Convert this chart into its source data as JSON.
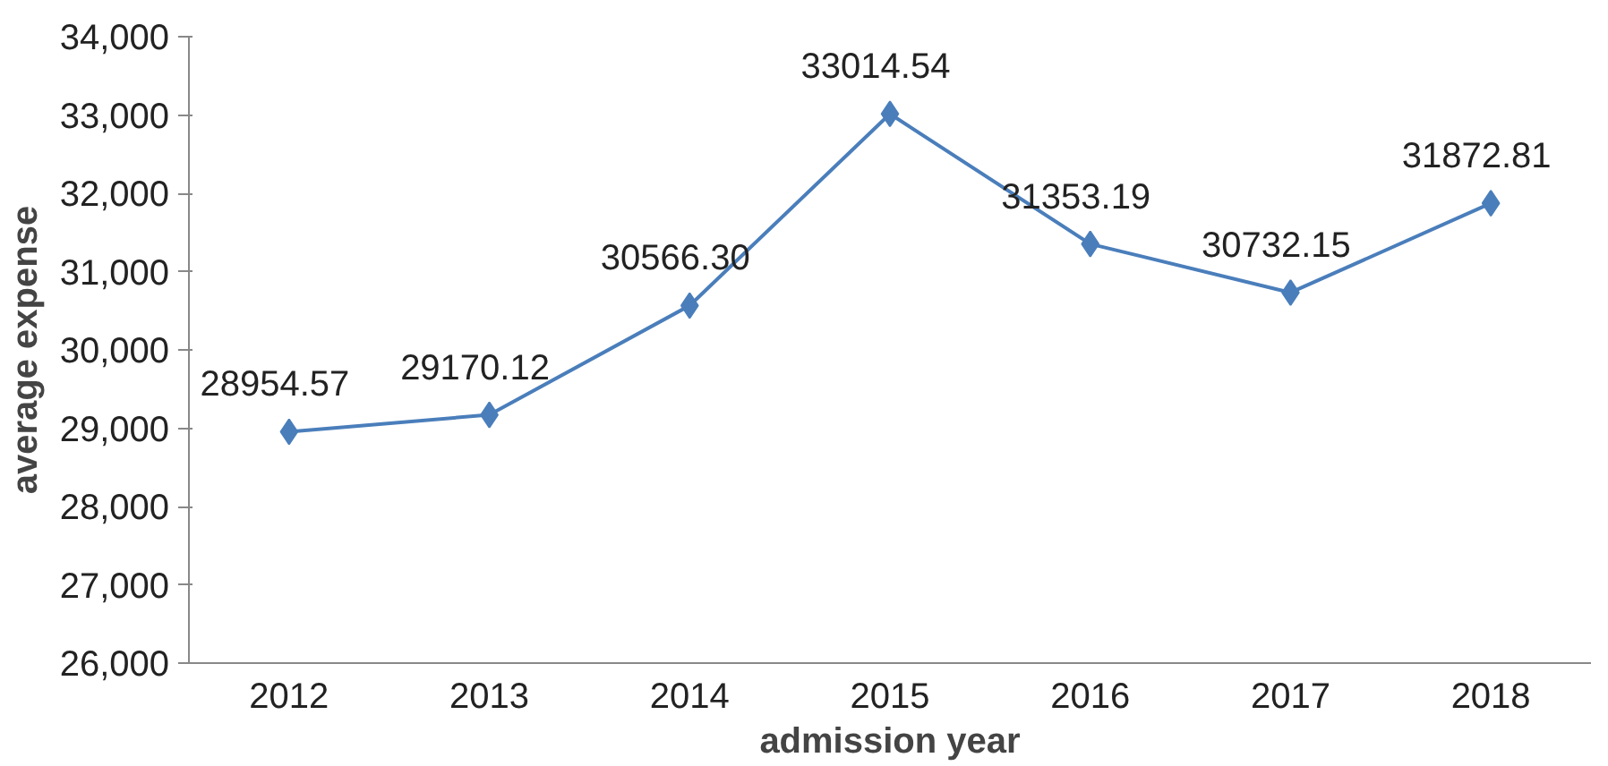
{
  "chart_data": {
    "type": "line",
    "xlabel": "admission year",
    "ylabel": "average expense",
    "categories": [
      "2012",
      "2013",
      "2014",
      "2015",
      "2016",
      "2017",
      "2018"
    ],
    "series": [
      {
        "color": "#4a7ebb",
        "values": [
          28954.57,
          29170.12,
          30566.3,
          33014.54,
          31353.19,
          30732.15,
          31872.81
        ],
        "value_labels": [
          "28954.57",
          "29170.12",
          "30566.30",
          "33014.54",
          "31353.19",
          "30732.15",
          "31872.81"
        ]
      }
    ],
    "ylim": [
      26000,
      34000
    ],
    "yticks": [
      {
        "value": 26000,
        "label": "26,000"
      },
      {
        "value": 27000,
        "label": "27,000"
      },
      {
        "value": 28000,
        "label": "28,000"
      },
      {
        "value": 29000,
        "label": "29,000"
      },
      {
        "value": 30000,
        "label": "30,000"
      },
      {
        "value": 31000,
        "label": "31,000"
      },
      {
        "value": 32000,
        "label": "32,000"
      },
      {
        "value": 33000,
        "label": "33,000"
      },
      {
        "value": 34000,
        "label": "34,000"
      }
    ],
    "marker": "diamond",
    "line_style": "solid",
    "grid": false
  }
}
